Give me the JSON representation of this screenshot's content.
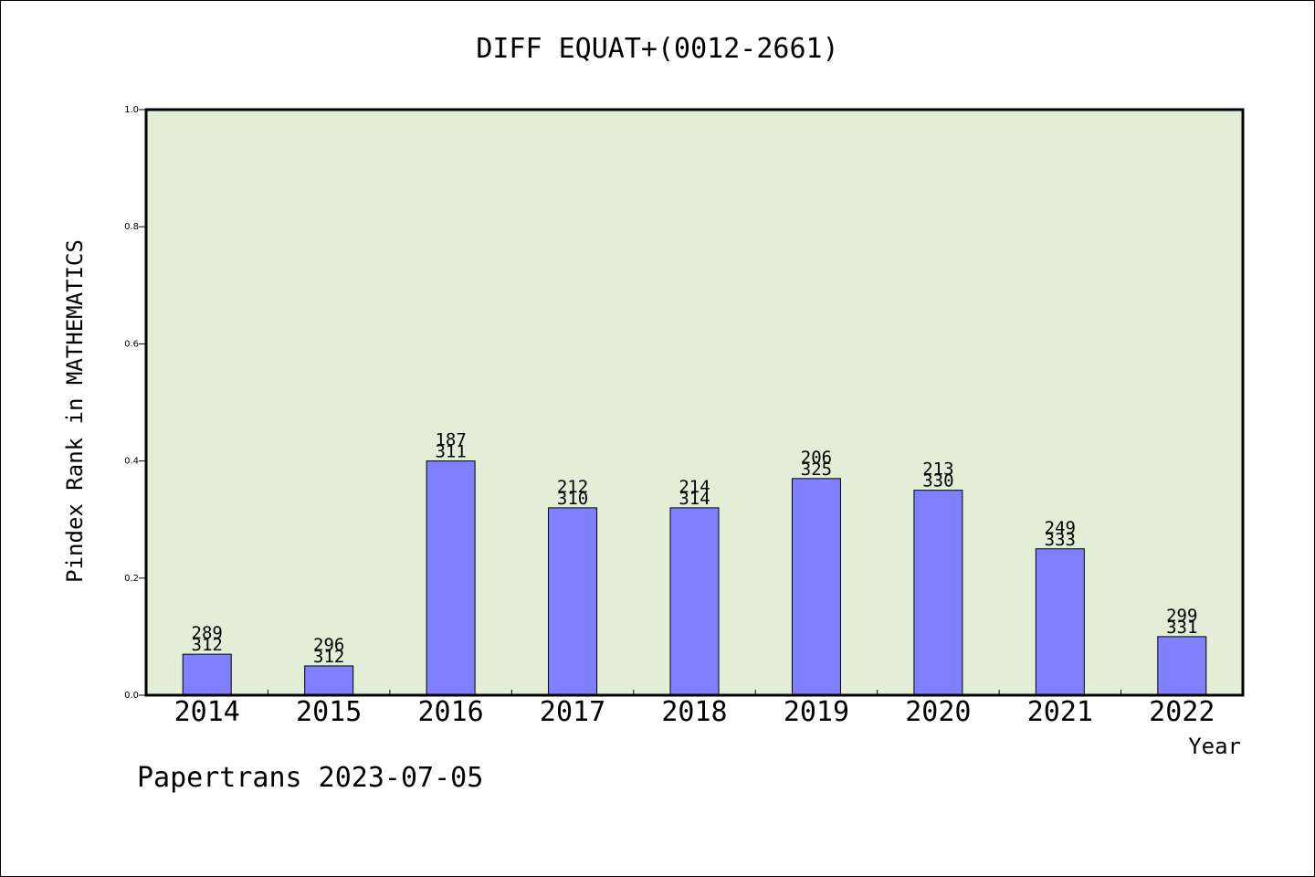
{
  "title": "DIFF EQUAT+(0012-2661)",
  "footer": "Papertrans 2023-07-05",
  "chart_data": {
    "type": "bar",
    "title": "DIFF EQUAT+(0012-2661)",
    "xlabel": "Year",
    "ylabel": "Pindex Rank in MATHEMATICS",
    "ylim": [
      0,
      1.0
    ],
    "yticks": [
      "0.0",
      "0.2",
      "0.4",
      "0.6",
      "0.8",
      "1.0"
    ],
    "categories": [
      "2014",
      "2015",
      "2016",
      "2017",
      "2018",
      "2019",
      "2020",
      "2021",
      "2022"
    ],
    "values": [
      0.07,
      0.05,
      0.4,
      0.32,
      0.32,
      0.37,
      0.35,
      0.25,
      0.1
    ],
    "labels_top": [
      "289",
      "296",
      "187",
      "212",
      "214",
      "206",
      "213",
      "249",
      "299"
    ],
    "labels_bottom": [
      "312",
      "312",
      "311",
      "310",
      "314",
      "325",
      "330",
      "333",
      "331"
    ],
    "plot_background": "#e2efd6",
    "bar_color": "#8080ff",
    "grid": false
  }
}
